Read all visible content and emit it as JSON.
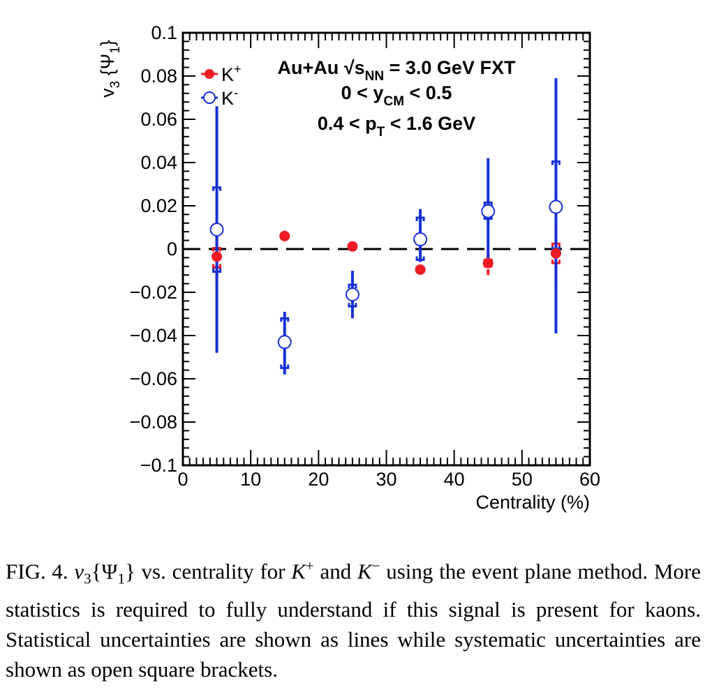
{
  "chart_data": {
    "type": "scatter",
    "xlabel": "Centrality (%)",
    "ylabel": {
      "main": "v",
      "sub": "3",
      "rest": " {Ψ",
      "rest_sub": "1",
      "close": "}"
    },
    "xlim": [
      0,
      60
    ],
    "ylim": [
      -0.1,
      0.1
    ],
    "x_ticks": [
      0,
      10,
      20,
      30,
      40,
      50,
      60
    ],
    "x_tick_labels": [
      "0",
      "10",
      "20",
      "30",
      "40",
      "50",
      "60"
    ],
    "y_ticks": [
      -0.1,
      -0.08,
      -0.06,
      -0.04,
      -0.02,
      0,
      0.02,
      0.04,
      0.06,
      0.08,
      0.1
    ],
    "y_tick_labels": [
      "−0.1",
      "−0.08",
      "−0.06",
      "−0.04",
      "−0.02",
      "0",
      "0.02",
      "0.04",
      "0.06",
      "0.08",
      "0.1"
    ],
    "reference_line": {
      "y": 0,
      "style": "dashed"
    },
    "legend_position": "top-left",
    "annotations": [
      {
        "parts": [
          [
            "Au+Au  ",
            ""
          ],
          [
            "√",
            ""
          ],
          [
            "s",
            ""
          ],
          [
            "NN",
            "sub"
          ],
          [
            " = 3.0 GeV FXT",
            ""
          ]
        ]
      },
      {
        "parts": [
          [
            "0 < y",
            ""
          ],
          [
            "CM",
            "sub"
          ],
          [
            " < 0.5",
            ""
          ]
        ]
      },
      {
        "parts": [
          [
            "0.4 < p",
            ""
          ],
          [
            "T",
            "sub"
          ],
          [
            " < 1.6 GeV",
            ""
          ]
        ]
      }
    ],
    "series": [
      {
        "name": "K+",
        "legend_base": "K",
        "legend_sup": "+",
        "marker": "filled-circle",
        "color": "#ee1c25",
        "points": [
          {
            "x": 5,
            "y": -0.0035,
            "stat": [
              -0.016,
              0.0065
            ],
            "sys": [
              -0.0085,
              0.0005
            ]
          },
          {
            "x": 15,
            "y": 0.006,
            "stat": [
              0.003,
              0.009
            ],
            "sys": [
              0.005,
              0.007
            ]
          },
          {
            "x": 25,
            "y": 0.0012,
            "stat": [
              0.0,
              0.0025
            ],
            "sys": [
              0.0005,
              0.002
            ]
          },
          {
            "x": 35,
            "y": -0.0095,
            "stat": [
              -0.012,
              -0.007
            ],
            "sys": [
              -0.0105,
              -0.0085
            ]
          },
          {
            "x": 45,
            "y": -0.0065,
            "stat": [
              -0.012,
              -0.001
            ],
            "sys": [
              -0.008,
              -0.005
            ]
          },
          {
            "x": 55,
            "y": -0.002,
            "stat": [
              -0.015,
              0.011
            ],
            "sys": [
              -0.0065,
              0.0025
            ]
          }
        ]
      },
      {
        "name": "K-",
        "legend_base": "K",
        "legend_sup": "-",
        "marker": "open-circle",
        "color": "#1630d6",
        "points": [
          {
            "x": 5,
            "y": 0.009,
            "stat": [
              -0.048,
              0.066
            ],
            "sys": [
              -0.0105,
              0.0285
            ]
          },
          {
            "x": 15,
            "y": -0.043,
            "stat": [
              -0.058,
              -0.029
            ],
            "sys": [
              -0.055,
              -0.032
            ]
          },
          {
            "x": 25,
            "y": -0.021,
            "stat": [
              -0.032,
              -0.01
            ],
            "sys": [
              -0.0265,
              -0.0165
            ]
          },
          {
            "x": 35,
            "y": 0.0045,
            "stat": [
              -0.006,
              0.0185
            ],
            "sys": [
              -0.005,
              0.0145
            ]
          },
          {
            "x": 45,
            "y": 0.0175,
            "stat": [
              -0.007,
              0.042
            ],
            "sys": [
              0.014,
              0.0215
            ]
          },
          {
            "x": 55,
            "y": 0.0195,
            "stat": [
              -0.039,
              0.079
            ],
            "sys": [
              -0.0005,
              0.0405
            ]
          }
        ]
      }
    ]
  },
  "caption": {
    "label": "FIG. 4.",
    "math_v": "v",
    "math_sub": "3",
    "math_psi": "{Ψ",
    "math_psi_sub": "1",
    "math_close": "}",
    "t1": " vs. centrality for ",
    "kplus": "K",
    "kplus_sup": "+",
    "t2": " and ",
    "kminus": "K",
    "kminus_sup": "−",
    "t3": " using the event plane method. More statistics is required to fully understand if this signal is present for kaons. Statistical uncertainties are shown as lines while systematic uncertainties are shown as open square brackets."
  }
}
